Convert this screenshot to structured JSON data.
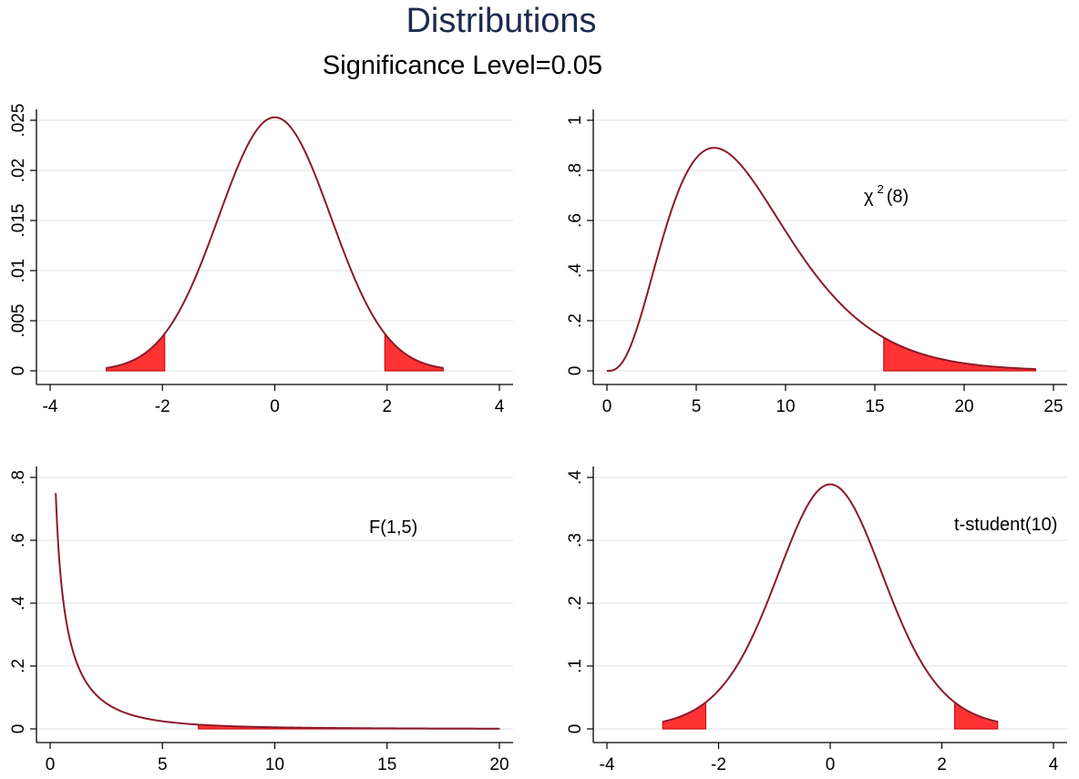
{
  "title": "Distributions",
  "subtitle": "Significance Level=0.05",
  "colors": {
    "curve": "#8b1a2b",
    "tail_fill": "#ff3333",
    "grid": "#e8e8e8",
    "title": "#1c2b4f"
  },
  "chart_data": [
    {
      "type": "area",
      "panel": "top-left",
      "distribution": "normal",
      "annotation": "",
      "xlim": [
        -4,
        4
      ],
      "ylim": [
        0,
        0.025
      ],
      "xticks": [
        -4,
        -2,
        0,
        2,
        4
      ],
      "xtick_labels": [
        "-4",
        "-2",
        "0",
        "2",
        "4"
      ],
      "yticks": [
        0,
        0.005,
        0.01,
        0.015,
        0.02,
        0.025
      ],
      "ytick_labels": [
        "0",
        ".005",
        ".01",
        ".015",
        ".02",
        ".025"
      ],
      "curve_range": [
        -3,
        3
      ],
      "peak": 0.0253,
      "shaded_regions": [
        [
          -3,
          -1.96
        ],
        [
          1.96,
          3
        ]
      ],
      "grid": true
    },
    {
      "type": "area",
      "panel": "top-right",
      "distribution": "chi-square",
      "annotation": "χ",
      "annotation_sup": "2",
      "annotation_tail": "(8)",
      "xlim": [
        0,
        25
      ],
      "ylim": [
        0,
        1
      ],
      "xticks": [
        0,
        5,
        10,
        15,
        20,
        25
      ],
      "xtick_labels": [
        "0",
        "5",
        "10",
        "15",
        "20",
        "25"
      ],
      "yticks": [
        0,
        0.2,
        0.4,
        0.6,
        0.8,
        1
      ],
      "ytick_labels": [
        "0",
        ".2",
        ".4",
        ".6",
        ".8",
        "1"
      ],
      "curve_range": [
        0,
        24
      ],
      "peak": 0.89,
      "shaded_regions": [
        [
          15.5,
          24
        ]
      ],
      "grid": true
    },
    {
      "type": "area",
      "panel": "bottom-left",
      "distribution": "F",
      "annotation": "F(1,5)",
      "xlim": [
        0,
        20
      ],
      "ylim": [
        0,
        0.8
      ],
      "xticks": [
        0,
        5,
        10,
        15,
        20
      ],
      "xtick_labels": [
        "0",
        "5",
        "10",
        "15",
        "20"
      ],
      "yticks": [
        0,
        0.2,
        0.4,
        0.6,
        0.8
      ],
      "ytick_labels": [
        "0",
        ".2",
        ".4",
        ".6",
        ".8"
      ],
      "curve_range": [
        0.25,
        20
      ],
      "peak": 0.75,
      "shaded_regions": [
        [
          6.6,
          20
        ]
      ],
      "grid": true
    },
    {
      "type": "area",
      "panel": "bottom-right",
      "distribution": "t",
      "annotation": "t-student(10)",
      "xlim": [
        -4,
        4
      ],
      "ylim": [
        0,
        0.4
      ],
      "xticks": [
        -4,
        -2,
        0,
        2,
        4
      ],
      "xtick_labels": [
        "-4",
        "-2",
        "0",
        "2",
        "4"
      ],
      "yticks": [
        0,
        0.1,
        0.2,
        0.3,
        0.4
      ],
      "ytick_labels": [
        "0",
        ".1",
        ".2",
        ".3",
        ".4"
      ],
      "curve_range": [
        -3,
        3
      ],
      "peak": 0.389,
      "shaded_regions": [
        [
          -3,
          -2.23
        ],
        [
          2.23,
          3
        ]
      ],
      "grid": true
    }
  ]
}
